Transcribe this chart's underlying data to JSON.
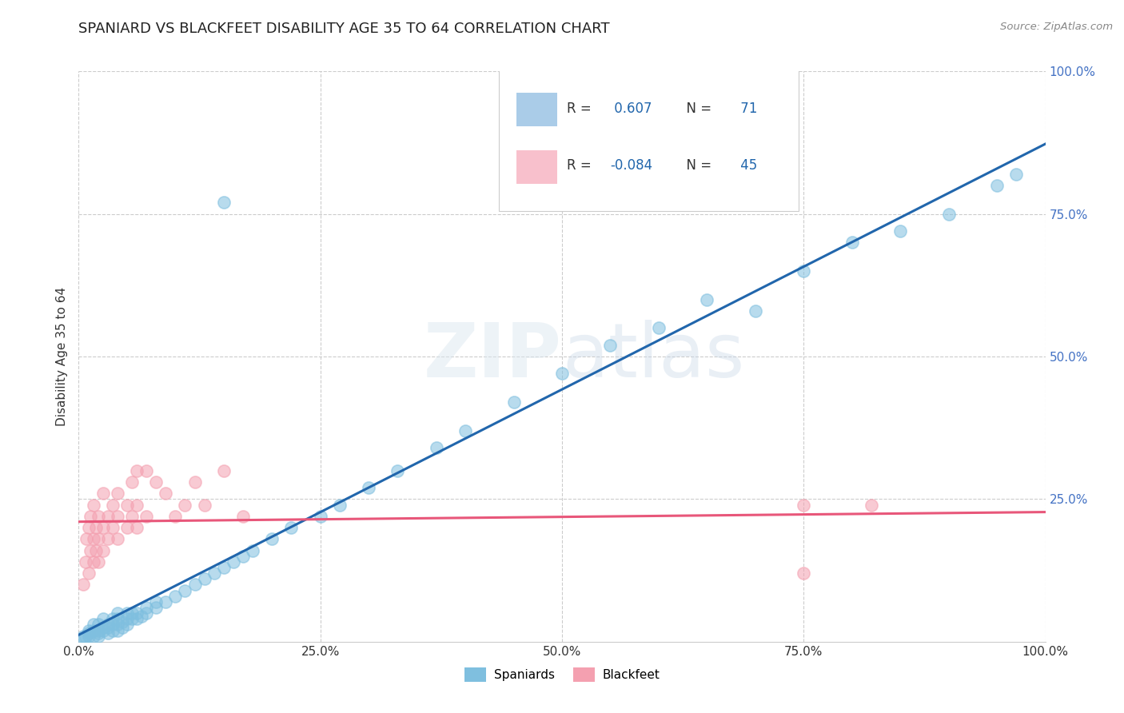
{
  "title": "SPANIARD VS BLACKFEET DISABILITY AGE 35 TO 64 CORRELATION CHART",
  "source_text": "Source: ZipAtlas.com",
  "ylabel": "Disability Age 35 to 64",
  "xlim": [
    0.0,
    1.0
  ],
  "ylim": [
    0.0,
    1.0
  ],
  "xtick_labels": [
    "0.0%",
    "25.0%",
    "50.0%",
    "75.0%",
    "100.0%"
  ],
  "xtick_vals": [
    0.0,
    0.25,
    0.5,
    0.75,
    1.0
  ],
  "ytick_labels": [
    "25.0%",
    "50.0%",
    "75.0%",
    "100.0%"
  ],
  "ytick_vals": [
    0.25,
    0.5,
    0.75,
    1.0
  ],
  "spaniard_color": "#7fbfdf",
  "blackfeet_color": "#f4a0b0",
  "R_spaniard": 0.607,
  "N_spaniard": 71,
  "R_blackfeet": -0.084,
  "N_blackfeet": 45,
  "trend_spaniard_color": "#2166ac",
  "trend_blackfeet_color": "#e8577a",
  "watermark_color": "#d8e8f0",
  "title_fontsize": 13,
  "spaniard_scatter": [
    [
      0.005,
      0.005
    ],
    [
      0.005,
      0.01
    ],
    [
      0.007,
      0.008
    ],
    [
      0.01,
      0.01
    ],
    [
      0.01,
      0.015
    ],
    [
      0.01,
      0.02
    ],
    [
      0.015,
      0.01
    ],
    [
      0.015,
      0.02
    ],
    [
      0.015,
      0.03
    ],
    [
      0.02,
      0.01
    ],
    [
      0.02,
      0.015
    ],
    [
      0.02,
      0.02
    ],
    [
      0.02,
      0.03
    ],
    [
      0.025,
      0.02
    ],
    [
      0.025,
      0.025
    ],
    [
      0.025,
      0.04
    ],
    [
      0.03,
      0.015
    ],
    [
      0.03,
      0.025
    ],
    [
      0.03,
      0.03
    ],
    [
      0.035,
      0.02
    ],
    [
      0.035,
      0.03
    ],
    [
      0.035,
      0.04
    ],
    [
      0.04,
      0.02
    ],
    [
      0.04,
      0.03
    ],
    [
      0.04,
      0.04
    ],
    [
      0.04,
      0.05
    ],
    [
      0.045,
      0.025
    ],
    [
      0.045,
      0.035
    ],
    [
      0.05,
      0.03
    ],
    [
      0.05,
      0.04
    ],
    [
      0.05,
      0.05
    ],
    [
      0.055,
      0.04
    ],
    [
      0.055,
      0.05
    ],
    [
      0.06,
      0.04
    ],
    [
      0.06,
      0.05
    ],
    [
      0.065,
      0.045
    ],
    [
      0.07,
      0.05
    ],
    [
      0.07,
      0.06
    ],
    [
      0.08,
      0.06
    ],
    [
      0.08,
      0.07
    ],
    [
      0.09,
      0.07
    ],
    [
      0.1,
      0.08
    ],
    [
      0.11,
      0.09
    ],
    [
      0.12,
      0.1
    ],
    [
      0.13,
      0.11
    ],
    [
      0.14,
      0.12
    ],
    [
      0.15,
      0.13
    ],
    [
      0.16,
      0.14
    ],
    [
      0.17,
      0.15
    ],
    [
      0.18,
      0.16
    ],
    [
      0.2,
      0.18
    ],
    [
      0.22,
      0.2
    ],
    [
      0.25,
      0.22
    ],
    [
      0.27,
      0.24
    ],
    [
      0.3,
      0.27
    ],
    [
      0.33,
      0.3
    ],
    [
      0.37,
      0.34
    ],
    [
      0.4,
      0.37
    ],
    [
      0.45,
      0.42
    ],
    [
      0.5,
      0.47
    ],
    [
      0.55,
      0.52
    ],
    [
      0.6,
      0.55
    ],
    [
      0.65,
      0.6
    ],
    [
      0.7,
      0.58
    ],
    [
      0.75,
      0.65
    ],
    [
      0.8,
      0.7
    ],
    [
      0.85,
      0.72
    ],
    [
      0.9,
      0.75
    ],
    [
      0.95,
      0.8
    ],
    [
      0.97,
      0.82
    ],
    [
      0.15,
      0.77
    ]
  ],
  "blackfeet_scatter": [
    [
      0.005,
      0.1
    ],
    [
      0.007,
      0.14
    ],
    [
      0.008,
      0.18
    ],
    [
      0.01,
      0.12
    ],
    [
      0.01,
      0.2
    ],
    [
      0.012,
      0.16
    ],
    [
      0.012,
      0.22
    ],
    [
      0.015,
      0.14
    ],
    [
      0.015,
      0.18
    ],
    [
      0.015,
      0.24
    ],
    [
      0.018,
      0.16
    ],
    [
      0.018,
      0.2
    ],
    [
      0.02,
      0.14
    ],
    [
      0.02,
      0.18
    ],
    [
      0.02,
      0.22
    ],
    [
      0.025,
      0.16
    ],
    [
      0.025,
      0.2
    ],
    [
      0.025,
      0.26
    ],
    [
      0.03,
      0.18
    ],
    [
      0.03,
      0.22
    ],
    [
      0.035,
      0.2
    ],
    [
      0.035,
      0.24
    ],
    [
      0.04,
      0.18
    ],
    [
      0.04,
      0.22
    ],
    [
      0.04,
      0.26
    ],
    [
      0.05,
      0.2
    ],
    [
      0.05,
      0.24
    ],
    [
      0.055,
      0.22
    ],
    [
      0.055,
      0.28
    ],
    [
      0.06,
      0.2
    ],
    [
      0.06,
      0.24
    ],
    [
      0.06,
      0.3
    ],
    [
      0.07,
      0.22
    ],
    [
      0.07,
      0.3
    ],
    [
      0.08,
      0.28
    ],
    [
      0.09,
      0.26
    ],
    [
      0.1,
      0.22
    ],
    [
      0.11,
      0.24
    ],
    [
      0.12,
      0.28
    ],
    [
      0.13,
      0.24
    ],
    [
      0.15,
      0.3
    ],
    [
      0.17,
      0.22
    ],
    [
      0.75,
      0.24
    ],
    [
      0.82,
      0.24
    ],
    [
      0.75,
      0.12
    ]
  ]
}
